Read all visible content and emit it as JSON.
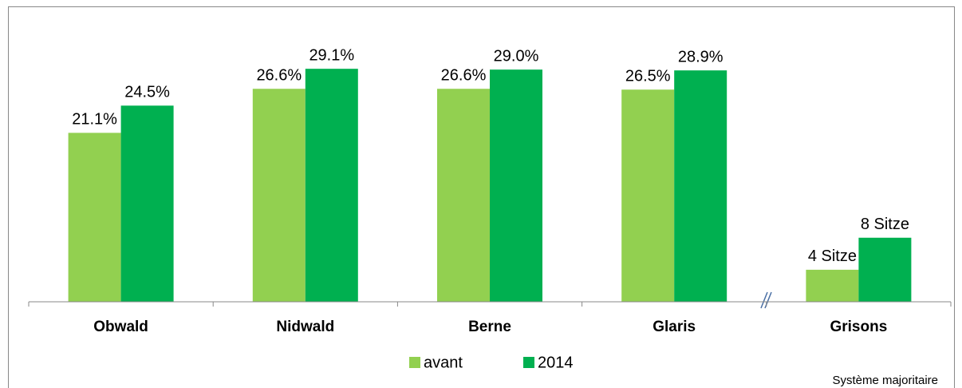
{
  "chart_data": {
    "type": "bar",
    "categories": [
      "Obwald",
      "Nidwald",
      "Berne",
      "Glaris",
      "Grisons"
    ],
    "series": [
      {
        "name": "avant",
        "color": "#92d050",
        "values": [
          21.1,
          26.6,
          26.6,
          26.5,
          4
        ],
        "value_labels": [
          "21.1%",
          "26.6%",
          "26.6%",
          "26.5%",
          "4 Sitze"
        ]
      },
      {
        "name": "2014",
        "color": "#00b050",
        "values": [
          24.5,
          29.1,
          29.0,
          28.9,
          8
        ],
        "value_labels": [
          "24.5%",
          "29.1%",
          "29.0%",
          "28.9%",
          "8 Sitze"
        ]
      }
    ],
    "ylim": [
      0,
      35
    ],
    "annotation": "Système majoritaire"
  }
}
